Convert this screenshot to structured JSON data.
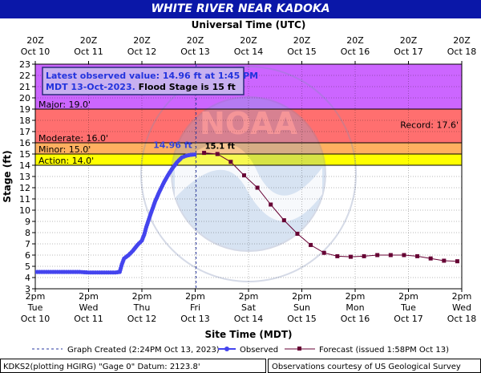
{
  "title": "WHITE RIVER NEAR KADOKA",
  "top_axis_title": "Universal Time (UTC)",
  "bottom_axis_title": "Site Time (MDT)",
  "y_axis_title": "Stage (ft)",
  "top_ticks": [
    [
      "20Z",
      "Oct 10"
    ],
    [
      "20Z",
      "Oct 11"
    ],
    [
      "20Z",
      "Oct 12"
    ],
    [
      "20Z",
      "Oct 13"
    ],
    [
      "20Z",
      "Oct 14"
    ],
    [
      "20Z",
      "Oct 15"
    ],
    [
      "20Z",
      "Oct 16"
    ],
    [
      "20Z",
      "Oct 17"
    ],
    [
      "20Z",
      "Oct 18"
    ]
  ],
  "bottom_ticks": [
    [
      "2pm",
      "Tue",
      "Oct 10"
    ],
    [
      "2pm",
      "Wed",
      "Oct 11"
    ],
    [
      "2pm",
      "Thu",
      "Oct 12"
    ],
    [
      "2pm",
      "Fri",
      "Oct 13"
    ],
    [
      "2pm",
      "Sat",
      "Oct 14"
    ],
    [
      "2pm",
      "Sun",
      "Oct 15"
    ],
    [
      "2pm",
      "Mon",
      "Oct 16"
    ],
    [
      "2pm",
      "Tue",
      "Oct 17"
    ],
    [
      "2pm",
      "Wed",
      "Oct 18"
    ]
  ],
  "info_box": {
    "line1": "Latest observed value: 14.96 ft at 1:45 PM",
    "line2_date": "MDT 13-Oct-2023.",
    "line2_flood": " Flood Stage is 15 ft"
  },
  "point_labels": {
    "observed": "14.96 ft",
    "forecast": "15.1 ft"
  },
  "legend": {
    "created": "Graph Created (2:24PM Oct 13, 2023)",
    "observed": "Observed",
    "forecast": "Forecast (issued 1:58PM Oct 13)"
  },
  "footer": {
    "left": "KDKS2(plotting HGIRG) \"Gage 0\" Datum: 2123.8'",
    "right": "Observations courtesy of US Geological Survey"
  },
  "watermark": "NOAA — NATIONAL OCEANIC AND ATMOSPHERIC ADMINISTRATION — U.S. DEPARTMENT OF COMMERCE",
  "colors": {
    "title_bg": "#0a17a8",
    "major": "#cc66ff",
    "moderate": "#ff6f6f",
    "minor": "#ffb060",
    "action": "#ffff00",
    "observed": "#4444ee",
    "forecast": "#660033",
    "grid": "#000000"
  },
  "chart_data": {
    "type": "line",
    "x_axis_ticks_mdt": [
      "2023-10-10 14:00",
      "2023-10-11 14:00",
      "2023-10-12 14:00",
      "2023-10-13 14:00",
      "2023-10-14 14:00",
      "2023-10-15 14:00",
      "2023-10-16 14:00",
      "2023-10-17 14:00",
      "2023-10-18 14:00"
    ],
    "ylim": [
      3,
      23
    ],
    "y_ticks": [
      3,
      4,
      5,
      6,
      7,
      8,
      9,
      10,
      11,
      12,
      13,
      14,
      15,
      16,
      17,
      18,
      19,
      20,
      21,
      22,
      23
    ],
    "thresholds": [
      {
        "name": "Major",
        "label": "Major: 19.0'",
        "value": 19.0
      },
      {
        "name": "Record",
        "label": "Record: 17.6'",
        "value": 17.6
      },
      {
        "name": "Moderate",
        "label": "Moderate: 16.0'",
        "value": 16.0
      },
      {
        "name": "Minor",
        "label": "Minor: 15.0'",
        "value": 15.0
      },
      {
        "name": "Action",
        "label": "Action: 14.0'",
        "value": 14.0
      }
    ],
    "series": [
      {
        "name": "Observed",
        "points": [
          [
            "2023-10-10 14:00",
            4.5
          ],
          [
            "2023-10-10 18:00",
            4.5
          ],
          [
            "2023-10-10 22:00",
            4.5
          ],
          [
            "2023-10-11 02:00",
            4.5
          ],
          [
            "2023-10-11 06:00",
            4.5
          ],
          [
            "2023-10-11 10:00",
            4.5
          ],
          [
            "2023-10-11 14:00",
            4.45
          ],
          [
            "2023-10-11 18:00",
            4.45
          ],
          [
            "2023-10-11 22:00",
            4.45
          ],
          [
            "2023-10-12 02:00",
            4.45
          ],
          [
            "2023-10-12 04:00",
            4.5
          ],
          [
            "2023-10-12 05:00",
            5.2
          ],
          [
            "2023-10-12 06:00",
            5.7
          ],
          [
            "2023-10-12 08:00",
            6.0
          ],
          [
            "2023-10-12 10:00",
            6.4
          ],
          [
            "2023-10-12 12:00",
            6.9
          ],
          [
            "2023-10-12 14:00",
            7.3
          ],
          [
            "2023-10-12 15:00",
            7.8
          ],
          [
            "2023-10-12 16:00",
            8.5
          ],
          [
            "2023-10-12 18:00",
            9.7
          ],
          [
            "2023-10-12 20:00",
            10.8
          ],
          [
            "2023-10-12 22:00",
            11.7
          ],
          [
            "2023-10-13 00:00",
            12.5
          ],
          [
            "2023-10-13 02:00",
            13.2
          ],
          [
            "2023-10-13 04:00",
            13.8
          ],
          [
            "2023-10-13 06:00",
            14.3
          ],
          [
            "2023-10-13 08:00",
            14.7
          ],
          [
            "2023-10-13 10:00",
            14.85
          ],
          [
            "2023-10-13 12:00",
            14.93
          ],
          [
            "2023-10-13 13:45",
            14.96
          ]
        ]
      },
      {
        "name": "Forecast",
        "points": [
          [
            "2023-10-13 18:00",
            15.1
          ],
          [
            "2023-10-14 00:00",
            15.0
          ],
          [
            "2023-10-14 06:00",
            14.3
          ],
          [
            "2023-10-14 12:00",
            13.1
          ],
          [
            "2023-10-14 18:00",
            12.0
          ],
          [
            "2023-10-15 00:00",
            10.5
          ],
          [
            "2023-10-15 06:00",
            9.1
          ],
          [
            "2023-10-15 12:00",
            7.9
          ],
          [
            "2023-10-15 18:00",
            6.9
          ],
          [
            "2023-10-16 00:00",
            6.2
          ],
          [
            "2023-10-16 06:00",
            5.9
          ],
          [
            "2023-10-16 12:00",
            5.85
          ],
          [
            "2023-10-16 18:00",
            5.9
          ],
          [
            "2023-10-17 00:00",
            6.0
          ],
          [
            "2023-10-17 06:00",
            6.0
          ],
          [
            "2023-10-17 12:00",
            6.0
          ],
          [
            "2023-10-17 18:00",
            5.9
          ],
          [
            "2023-10-18 00:00",
            5.7
          ],
          [
            "2023-10-18 06:00",
            5.5
          ],
          [
            "2023-10-18 12:00",
            5.45
          ]
        ]
      }
    ],
    "graph_created": "2023-10-13 14:24"
  }
}
